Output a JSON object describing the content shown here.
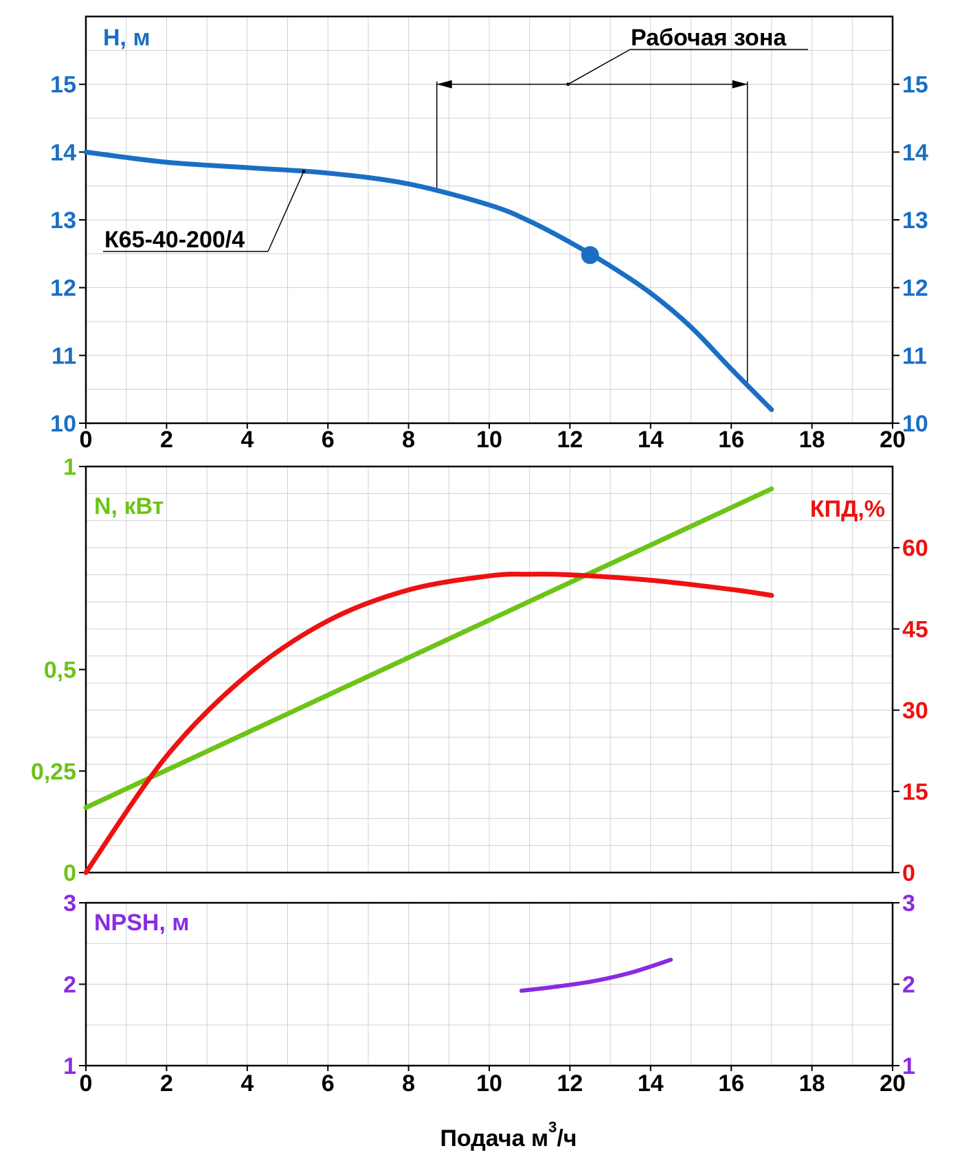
{
  "chart_data": [
    {
      "type": "line",
      "id": "head",
      "ylabel": "H, м",
      "xlim": [
        0,
        20
      ],
      "ylim": [
        10,
        16
      ],
      "x_ticks": [
        0,
        2,
        4,
        6,
        8,
        10,
        12,
        14,
        16,
        18,
        20
      ],
      "y_ticks": [
        10,
        11,
        12,
        13,
        14,
        15
      ],
      "grid": true,
      "colors": {
        "curve": "#1a6fc4",
        "axis_text": "#1a6fc4"
      },
      "series": [
        {
          "name": "К65-40-200/4",
          "x": [
            0,
            2,
            4,
            6,
            8,
            10,
            11,
            12,
            13,
            14,
            15,
            16,
            17
          ],
          "y": [
            14.0,
            13.85,
            13.77,
            13.69,
            13.53,
            13.22,
            12.98,
            12.67,
            12.32,
            11.92,
            11.42,
            10.8,
            10.2
          ]
        }
      ],
      "operating_point": {
        "x": 12.5,
        "y": 12.48
      },
      "annotations": {
        "work_zone_label": "Рабочая зона",
        "work_zone_range": [
          8.7,
          16.4
        ],
        "work_zone_level": 15.0,
        "model_label": "К65-40-200/4"
      }
    },
    {
      "type": "line",
      "id": "power_efficiency",
      "xlim": [
        0,
        20
      ],
      "x_ticks": [
        0,
        2,
        4,
        6,
        8,
        10,
        12,
        14,
        16,
        18,
        20
      ],
      "grid": true,
      "left_axis": {
        "label": "N, кВт",
        "ylim": [
          0,
          1
        ],
        "ticks": [
          "0",
          "0,25",
          "0,5",
          "1"
        ],
        "tick_values": [
          0,
          0.25,
          0.5,
          1
        ],
        "color": "#6cc417"
      },
      "right_axis": {
        "label": "КПД,%",
        "ylim": [
          0,
          75
        ],
        "ticks": [
          0,
          15,
          30,
          45,
          60
        ],
        "color": "#ee1111"
      },
      "series": [
        {
          "axis": "left",
          "color": "#6cc417",
          "x": [
            0,
            17
          ],
          "y": [
            0.16,
            0.945
          ]
        },
        {
          "axis": "right",
          "color": "#ee1111",
          "x": [
            0,
            2,
            4,
            6,
            8,
            10,
            11,
            12,
            14,
            16,
            17
          ],
          "y": [
            0,
            21.5,
            36.5,
            46.5,
            52.2,
            54.8,
            55.1,
            55.0,
            54.0,
            52.3,
            51.2
          ]
        }
      ]
    },
    {
      "type": "line",
      "id": "npsh",
      "ylabel": "NPSH, м",
      "xlabel": "Подача м",
      "xlabel_sup": "3",
      "xlabel_suffix": "/ч",
      "xlim": [
        0,
        20
      ],
      "ylim": [
        1,
        3
      ],
      "x_ticks": [
        0,
        2,
        4,
        6,
        8,
        10,
        12,
        14,
        16,
        18,
        20
      ],
      "y_ticks": [
        1,
        2,
        3
      ],
      "grid": true,
      "colors": {
        "curve": "#8a2be2",
        "axis_text": "#8a2be2"
      },
      "series": [
        {
          "x": [
            10.8,
            11.5,
            12.5,
            13.5,
            14.5
          ],
          "y": [
            1.92,
            1.96,
            2.03,
            2.14,
            2.3
          ]
        }
      ]
    }
  ]
}
